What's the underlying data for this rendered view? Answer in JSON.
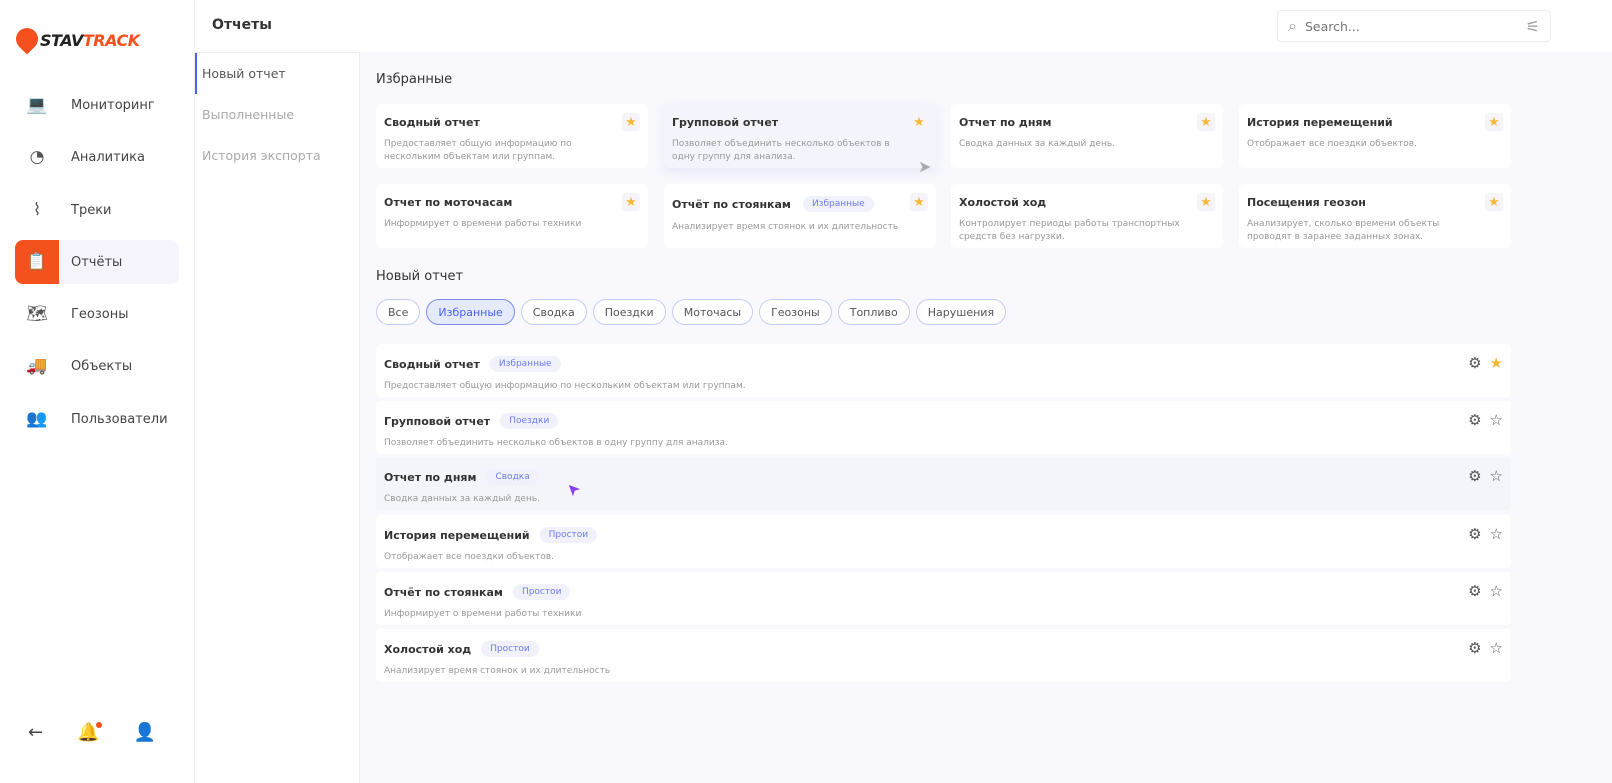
{
  "brand": {
    "part1": "STAV",
    "part2": "TRACK",
    "accent": "#f4511e"
  },
  "sidebar": {
    "items": [
      {
        "label": "Мониторинг",
        "icon": "laptop-pin-icon"
      },
      {
        "label": "Аналитика",
        "icon": "pie-chart-icon"
      },
      {
        "label": "Треки",
        "icon": "route-icon"
      },
      {
        "label": "Отчёты",
        "icon": "clipboard-report-icon",
        "active": true
      },
      {
        "label": "Геозоны",
        "icon": "map-icon"
      },
      {
        "label": "Объекты",
        "icon": "truck-icon"
      },
      {
        "label": "Пользователи",
        "icon": "users-icon"
      }
    ],
    "bottom": [
      "back-arrow-icon",
      "bell-icon",
      "profile-icon"
    ]
  },
  "header": {
    "title": "Отчеты",
    "search_placeholder": "Search..."
  },
  "subnav": {
    "items": [
      "Новый отчет",
      "Выполненные",
      "История экспорта"
    ]
  },
  "favorites": {
    "title": "Избранные",
    "cards": [
      {
        "title": "Сводный отчет",
        "desc": "Предоставляет общую информацию по нескольким объектам или группам."
      },
      {
        "title": "Групповой отчет",
        "desc": "Позволяет объединить несколько объектов в одну группу для анализа."
      },
      {
        "title": "Отчет по дням",
        "desc": "Сводка данных за каждый день."
      },
      {
        "title": "История перемещений",
        "desc": "Отображает все поездки объектов."
      },
      {
        "title": "Отчет по моточасам",
        "desc": "Информирует о времени работы техники"
      },
      {
        "title": "Отчёт по стоянкам",
        "badge": "Избранные",
        "desc": "Анализирует время стоянок и их длительность"
      },
      {
        "title": "Холостой ход",
        "desc": "Контролирует периоды работы транспортных средств без нагрузки."
      },
      {
        "title": "Посещения геозон",
        "desc": "Анализирует, сколько времени объекты проводят в заранее заданных зонах."
      }
    ]
  },
  "new_report": {
    "title": "Новый отчет",
    "filters": [
      "Все",
      "Избранные",
      "Сводка",
      "Поездки",
      "Моточасы",
      "Геозоны",
      "Топливо",
      "Нарушения"
    ],
    "active_filter": "Избранные",
    "rows": [
      {
        "title": "Сводный отчет",
        "badge": "Избранные",
        "desc": "Предоставляет общую информацию по нескольким объектам или группам.",
        "starred": true
      },
      {
        "title": "Групповой отчет",
        "badge": "Поездки",
        "desc": "Позволяет объединить несколько объектов в одну группу для анализа.",
        "starred": false
      },
      {
        "title": "Отчет по дням",
        "badge": "Сводка",
        "desc": "Сводка данных за каждый день.",
        "starred": false
      },
      {
        "title": "История перемещений",
        "badge": "Простои",
        "desc": "Отображает все поездки объектов.",
        "starred": false
      },
      {
        "title": "Отчёт по стоянкам",
        "badge": "Простои",
        "desc": "Информирует о времени работы техники",
        "starred": false
      },
      {
        "title": "Холостой ход",
        "badge": "Простои",
        "desc": "Анализирует время стоянок и их длительность",
        "starred": false
      }
    ]
  }
}
